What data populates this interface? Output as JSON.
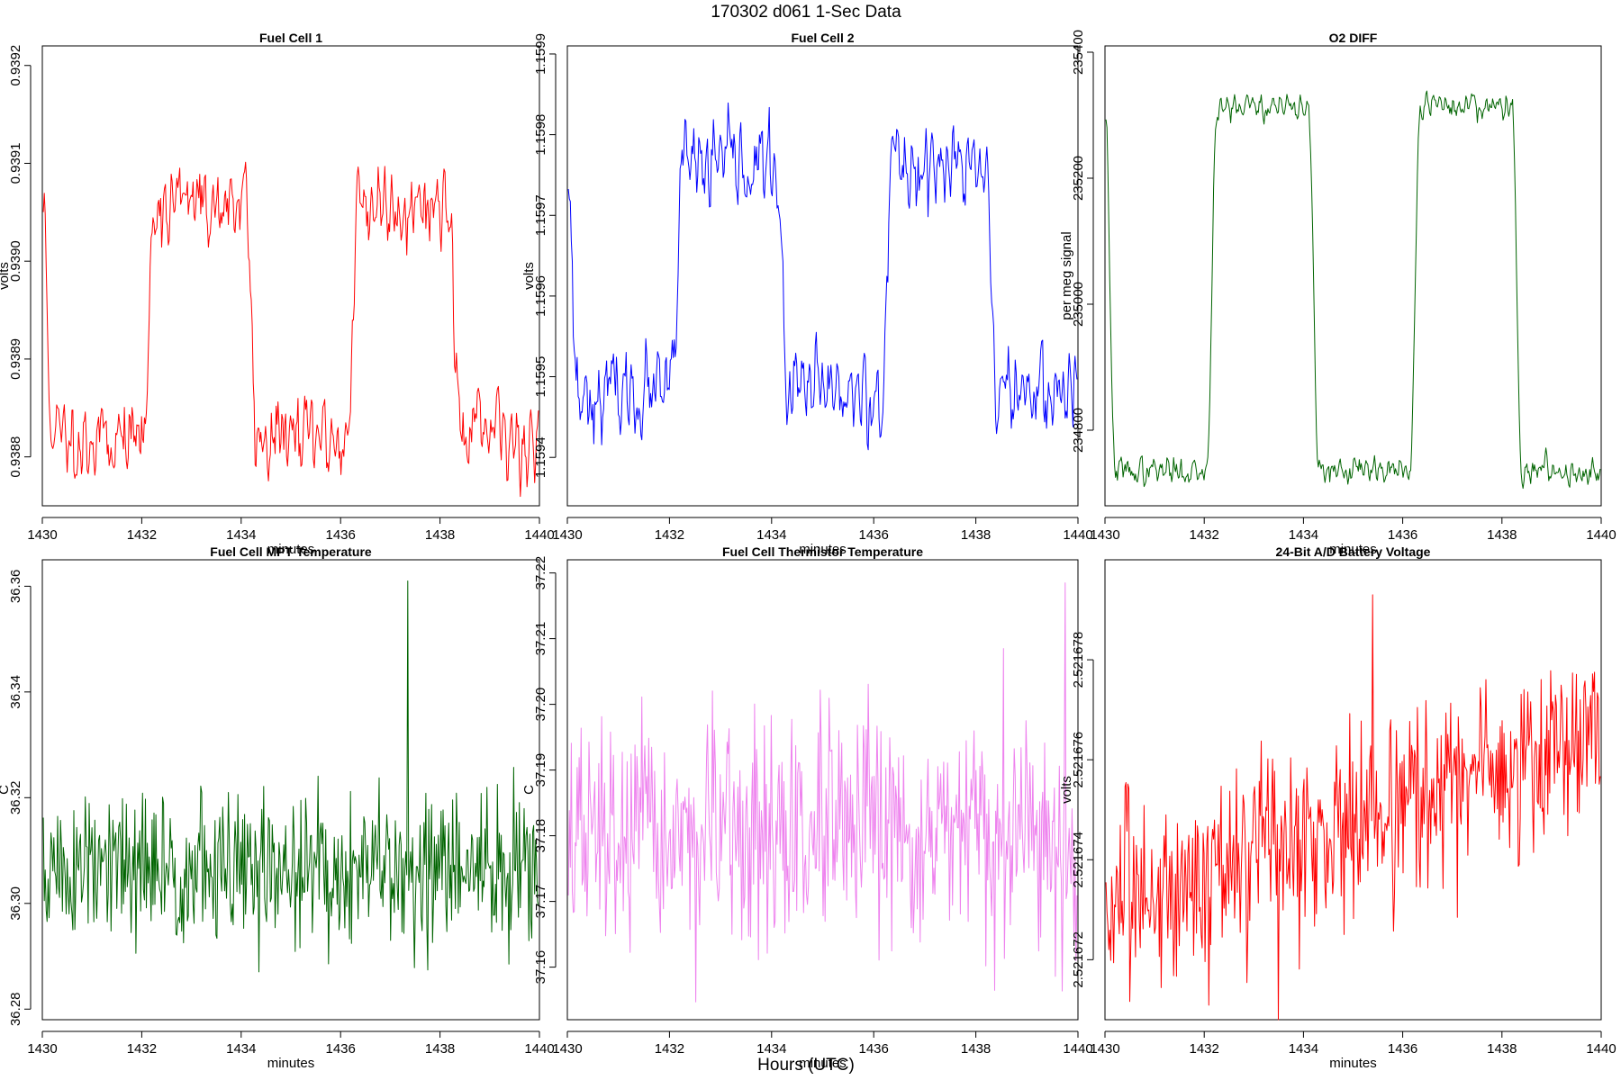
{
  "page": {
    "title": "170302   d061   1-Sec Data",
    "xlabel_outer": "Hours (UTC)"
  },
  "chart_data": [
    {
      "type": "line",
      "title": "Fuel Cell 1",
      "xlabel": "minutes",
      "ylabel": "volts",
      "color": "#ff0000",
      "xlim": [
        1430,
        1440
      ],
      "ylim": [
        0.93875,
        0.93922
      ],
      "xticks": [
        1430,
        1432,
        1434,
        1436,
        1438,
        1440
      ],
      "xtick_labels": [
        "1430",
        "1432",
        "1434",
        "1436",
        "1438",
        "1440"
      ],
      "yticks": [
        0.9388,
        0.9389,
        0.939,
        0.9391,
        0.9392
      ],
      "ytick_labels": [
        "0.9388",
        "0.9389",
        "0.9390",
        "0.9391",
        "0.9392"
      ],
      "pattern": {
        "kind": "square",
        "low": 0.93882,
        "high": 0.93906,
        "period_minutes": 4.1,
        "start_phase": 0.0,
        "noise": 2.8e-05,
        "seed": 11
      }
    },
    {
      "type": "line",
      "title": "Fuel Cell 2",
      "xlabel": "minutes",
      "ylabel": "volts",
      "color": "#0000ff",
      "xlim": [
        1430,
        1440
      ],
      "ylim": [
        1.15934,
        1.15991
      ],
      "xticks": [
        1430,
        1432,
        1434,
        1436,
        1438,
        1440
      ],
      "xtick_labels": [
        "1430",
        "1432",
        "1434",
        "1436",
        "1438",
        "1440"
      ],
      "yticks": [
        1.1594,
        1.1595,
        1.1596,
        1.1597,
        1.1598,
        1.1599
      ],
      "ytick_labels": [
        "1.1594",
        "1.1595",
        "1.1596",
        "1.1597",
        "1.1598",
        "1.1599"
      ],
      "pattern": {
        "kind": "square",
        "low": 1.15948,
        "high": 1.15976,
        "period_minutes": 4.1,
        "start_phase": 0.0,
        "noise": 3.5e-05,
        "seed": 23
      }
    },
    {
      "type": "line",
      "title": "O2 DIFF",
      "xlabel": "minutes",
      "ylabel": "per meg signal",
      "color": "#006400",
      "xlim": [
        1430,
        1440
      ],
      "ylim": [
        234680,
        235410
      ],
      "xticks": [
        1430,
        1432,
        1434,
        1436,
        1438,
        1440
      ],
      "xtick_labels": [
        "1430",
        "1432",
        "1434",
        "1436",
        "1438",
        "1440"
      ],
      "yticks": [
        234800,
        235000,
        235200,
        235400
      ],
      "ytick_labels": [
        "234800",
        "235000",
        "235200",
        "235400"
      ],
      "pattern": {
        "kind": "square",
        "low": 234735,
        "high": 235315,
        "period_minutes": 4.1,
        "start_phase": 0.5,
        "noise": 14,
        "seed": 37
      }
    },
    {
      "type": "line",
      "title": "Fuel Cell MPT Temperature",
      "xlabel": "minutes",
      "ylabel": "C",
      "color": "#006400",
      "xlim": [
        1430,
        1440
      ],
      "ylim": [
        36.278,
        36.365
      ],
      "xticks": [
        1430,
        1432,
        1434,
        1436,
        1438,
        1440
      ],
      "xtick_labels": [
        "1430",
        "1432",
        "1434",
        "1436",
        "1438",
        "1440"
      ],
      "yticks": [
        36.28,
        36.3,
        36.32,
        36.34,
        36.36
      ],
      "ytick_labels": [
        "36.28",
        "36.30",
        "36.32",
        "36.34",
        "36.36"
      ],
      "pattern": {
        "kind": "noise",
        "mean": 36.306,
        "noise": 0.0075,
        "spike_minute": 1437.35,
        "spike_value": 36.361,
        "seed": 51
      }
    },
    {
      "type": "line",
      "title": "Fuel Cell Thermistor Temperature",
      "xlabel": "minutes",
      "ylabel": "C",
      "color": "#ee82ee",
      "xlim": [
        1430,
        1440
      ],
      "ylim": [
        37.152,
        37.222
      ],
      "xticks": [
        1430,
        1432,
        1434,
        1436,
        1438,
        1440
      ],
      "xtick_labels": [
        "1430",
        "1432",
        "1434",
        "1436",
        "1438",
        "1440"
      ],
      "yticks": [
        37.16,
        37.17,
        37.18,
        37.19,
        37.2,
        37.21,
        37.22
      ],
      "ytick_labels": [
        "37.16",
        "37.17",
        "37.18",
        "37.19",
        "37.20",
        "37.21",
        "37.22"
      ],
      "pattern": {
        "kind": "noise",
        "mean": 37.1795,
        "noise": 0.0085,
        "spike_minute": 1439.75,
        "spike_value": 37.2185,
        "seed": 67
      }
    },
    {
      "type": "line",
      "title": "24-Bit A/D Battery Voltage",
      "xlabel": "minutes",
      "ylabel": "volts",
      "color": "#ff0000",
      "xlim": [
        1430,
        1440
      ],
      "ylim": [
        2.5216708,
        2.52168
      ],
      "xticks": [
        1430,
        1432,
        1434,
        1436,
        1438,
        1440
      ],
      "xtick_labels": [
        "1430",
        "1432",
        "1434",
        "1436",
        "1438",
        "1440"
      ],
      "yticks": [
        2.521672,
        2.521674,
        2.521676,
        2.521678
      ],
      "ytick_labels": [
        "2.521672",
        "2.521674",
        "2.521676",
        "2.521678"
      ],
      "pattern": {
        "kind": "trend",
        "start": 2.521673,
        "end": 2.5216765,
        "noise": 9.5e-07,
        "spike_minute": 1435.4,
        "spike_value": 2.5216793,
        "dip_minute": 1433.5,
        "dip_value": 2.5216708,
        "seed": 83
      }
    }
  ]
}
